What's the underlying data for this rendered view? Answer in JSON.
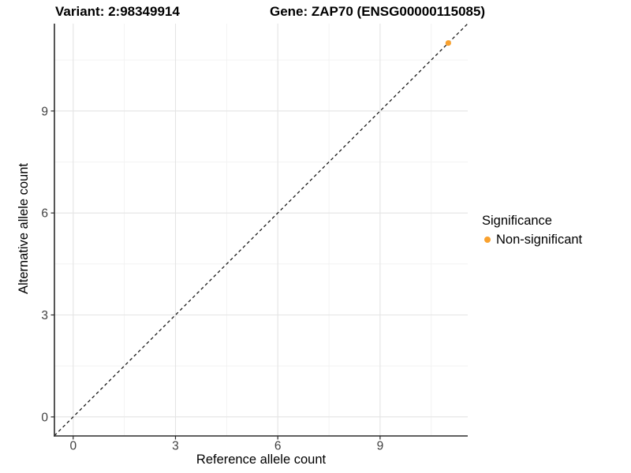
{
  "chart_data": {
    "type": "scatter",
    "titles": {
      "variant": "Variant: 2:98349914",
      "gene": "Gene: ZAP70 (ENSG00000115085)"
    },
    "xlabel": "Reference allele count",
    "ylabel": "Alternative allele count",
    "xlim": [
      -0.55,
      11.57
    ],
    "ylim": [
      -0.56,
      11.57
    ],
    "x_major_ticks": [
      0,
      3,
      6,
      9
    ],
    "y_major_ticks": [
      0,
      3,
      6,
      9
    ],
    "x_minor_ticks": [
      1.5,
      4.5,
      7.5,
      10.5
    ],
    "y_minor_ticks": [
      1.5,
      4.5,
      7.5,
      10.5
    ],
    "grid": "major+minor",
    "points": [
      {
        "x": 11,
        "y": 11,
        "series": "Non-significant"
      }
    ],
    "identity_line": {
      "style": "dashed",
      "from": [
        -0.55,
        -0.55
      ],
      "to": [
        11.57,
        11.57
      ]
    },
    "legend": {
      "title": "Significance",
      "position": "right",
      "entries": [
        {
          "label": "Non-significant",
          "color": "#F9A12E"
        }
      ]
    },
    "colors": {
      "point": "#F9A12E",
      "grid_major": "#E4E4E4",
      "grid_minor": "#F0F0F0",
      "axis_line": "#2B2B2B",
      "identity_line": "#1A1A1A",
      "tick_label": "#404040"
    }
  }
}
